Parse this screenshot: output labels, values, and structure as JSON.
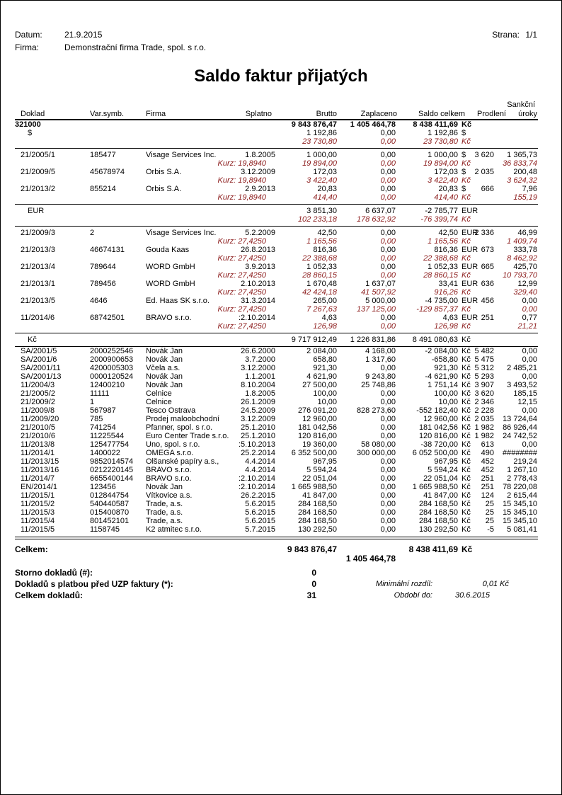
{
  "header": {
    "datum_label": "Datum:",
    "datum": "21.9.2015",
    "firma_label": "Firma:",
    "firma": "Demonstrační firma Trade, spol. s r.o.",
    "strana_label": "Strana:",
    "strana": "1/1"
  },
  "title": "Saldo faktur přijatých",
  "columns": {
    "doklad": "Doklad",
    "vs": "Var.symb.",
    "firma": "Firma",
    "splatno": "Splatno",
    "brutto": "Brutto",
    "zaplaceno": "Zaplaceno",
    "saldo": "Saldo celkem",
    "prodleni": "Prodlení",
    "sankce_1": "Sankční",
    "sankce_2": "úroky"
  },
  "account": {
    "label": "321000",
    "brutto": "9 843 876,47",
    "zaplaceno": "1 405 464,78",
    "saldo": "8 438 411,69",
    "mena": "Kč"
  },
  "groups": [
    {
      "label": "$",
      "total": {
        "brutto": "1 192,86",
        "zaplaceno": "0,00",
        "saldo": "1 192,86",
        "mena": "$"
      },
      "total_czk": {
        "brutto": "23 730,80",
        "zaplaceno": "0,00",
        "saldo": "23 730,80",
        "mena": "Kč"
      },
      "rows": [
        {
          "doklad": "21/2005/1",
          "vs": "185477",
          "firma": "Visage Services Inc.",
          "splatno": "1.8.2005",
          "brutto": "1 000,00",
          "zaplaceno": "0,00",
          "saldo": "1 000,00",
          "mena": "$",
          "prodleni": "3 620",
          "sankce": "1 365,73",
          "czk": {
            "kurz": "Kurz: 19,8940",
            "brutto": "19 894,00",
            "zaplaceno": "0,00",
            "saldo": "19 894,00",
            "mena": "Kč",
            "sankce": "36 833,74"
          }
        },
        {
          "doklad": "21/2009/5",
          "vs": "45678974",
          "firma": "Orbis S.A.",
          "splatno": "3.12.2009",
          "brutto": "172,03",
          "zaplaceno": "0,00",
          "saldo": "172,03",
          "mena": "$",
          "prodleni": "2 035",
          "sankce": "200,48",
          "czk": {
            "kurz": "Kurz: 19,8940",
            "brutto": "3 422,40",
            "zaplaceno": "0,00",
            "saldo": "3 422,40",
            "mena": "Kč",
            "sankce": "3 624,32"
          }
        },
        {
          "doklad": "21/2013/2",
          "vs": "855214",
          "firma": "Orbis S.A.",
          "splatno": "2.9.2013",
          "brutto": "20,83",
          "zaplaceno": "0,00",
          "saldo": "20,83",
          "mena": "$",
          "prodleni": "666",
          "sankce": "7,96",
          "czk": {
            "kurz": "Kurz: 19,8940",
            "brutto": "414,40",
            "zaplaceno": "0,00",
            "saldo": "414,40",
            "mena": "Kč",
            "sankce": "155,19"
          }
        }
      ]
    },
    {
      "label": "EUR",
      "total": {
        "brutto": "3 851,30",
        "zaplaceno": "6 637,07",
        "saldo": "-2 785,77",
        "mena": "EUR"
      },
      "total_czk": {
        "brutto": "102 233,18",
        "zaplaceno": "178 632,92",
        "saldo": "-76 399,74",
        "mena": "Kč"
      },
      "rows": [
        {
          "doklad": "21/2009/3",
          "vs": "2",
          "firma": "Visage Services Inc.",
          "splatno": "5.2.2009",
          "brutto": "42,50",
          "zaplaceno": "0,00",
          "saldo": "42,50",
          "mena": "EUR",
          "prodleni": "2 336",
          "sankce": "46,99",
          "czk": {
            "kurz": "Kurz: 27,4250",
            "brutto": "1 165,56",
            "zaplaceno": "0,00",
            "saldo": "1 165,56",
            "mena": "Kč",
            "sankce": "1 409,74"
          }
        },
        {
          "doklad": "21/2013/3",
          "vs": "46674131",
          "firma": "Gouda Kaas",
          "splatno": "26.8.2013",
          "brutto": "816,36",
          "zaplaceno": "0,00",
          "saldo": "816,36",
          "mena": "EUR",
          "prodleni": "673",
          "sankce": "333,78",
          "czk": {
            "kurz": "Kurz: 27,4250",
            "brutto": "22 388,68",
            "zaplaceno": "0,00",
            "saldo": "22 388,68",
            "mena": "Kč",
            "sankce": "8 462,92"
          }
        },
        {
          "doklad": "21/2013/4",
          "vs": "789644",
          "firma": "WORD GmbH",
          "splatno": "3.9.2013",
          "brutto": "1 052,33",
          "zaplaceno": "0,00",
          "saldo": "1 052,33",
          "mena": "EUR",
          "prodleni": "665",
          "sankce": "425,70",
          "czk": {
            "kurz": "Kurz: 27,4250",
            "brutto": "28 860,15",
            "zaplaceno": "0,00",
            "saldo": "28 860,15",
            "mena": "Kč",
            "sankce": "10 793,70"
          }
        },
        {
          "doklad": "21/2013/1",
          "vs": "789456",
          "firma": "WORD GmbH",
          "splatno": "2.10.2013",
          "brutto": "1 670,48",
          "zaplaceno": "1 637,07",
          "saldo": "33,41",
          "mena": "EUR",
          "prodleni": "636",
          "sankce": "12,99",
          "czk": {
            "kurz": "Kurz: 27,4250",
            "brutto": "42 424,18",
            "zaplaceno": "41 507,92",
            "saldo": "916,26",
            "mena": "Kč",
            "sankce": "329,40"
          }
        },
        {
          "doklad": "21/2013/5",
          "vs": "4646",
          "firma": "Ed. Haas SK s.r.o.",
          "splatno": "31.3.2014",
          "brutto": "265,00",
          "zaplaceno": "5 000,00",
          "saldo": "-4 735,00",
          "mena": "EUR",
          "prodleni": "456",
          "sankce": "0,00",
          "czk": {
            "kurz": "Kurz: 27,4250",
            "brutto": "7 267,63",
            "zaplaceno": "137 125,00",
            "saldo": "-129 857,37",
            "mena": "Kč",
            "sankce": "0,00"
          }
        },
        {
          "doklad": "11/2014/6",
          "vs": "68742501",
          "firma": "BRAVO s.r.o.",
          "splatno": ":2.10.2014",
          "brutto": "4,63",
          "zaplaceno": "0,00",
          "saldo": "4,63",
          "mena": "EUR",
          "prodleni": "251",
          "sankce": "0,77",
          "czk": {
            "kurz": "Kurz: 27,4250",
            "brutto": "126,98",
            "zaplaceno": "0,00",
            "saldo": "126,98",
            "mena": "Kč",
            "sankce": "21,21"
          }
        }
      ]
    },
    {
      "label": "Kč",
      "total": {
        "brutto": "9 717 912,49",
        "zaplaceno": "1 226 831,86",
        "saldo": "8 491 080,63",
        "mena": "Kč"
      },
      "rows": [
        {
          "doklad": "SA/2001/5",
          "vs": "2000252546",
          "firma": "Novák Jan",
          "splatno": "26.6.2000",
          "brutto": "2 084,00",
          "zaplaceno": "4 168,00",
          "saldo": "-2 084,00",
          "mena": "Kč",
          "prodleni": "5 482",
          "sankce": "0,00"
        },
        {
          "doklad": "SA/2001/6",
          "vs": "2000900653",
          "firma": "Novák Jan",
          "splatno": "3.7.2000",
          "brutto": "658,80",
          "zaplaceno": "1 317,60",
          "saldo": "-658,80",
          "mena": "Kč",
          "prodleni": "5 475",
          "sankce": "0,00"
        },
        {
          "doklad": "SA/2001/11",
          "vs": "4200005303",
          "firma": "Včela a.s.",
          "splatno": "3.12.2000",
          "brutto": "921,30",
          "zaplaceno": "0,00",
          "saldo": "921,30",
          "mena": "Kč",
          "prodleni": "5 312",
          "sankce": "2 485,21"
        },
        {
          "doklad": "SA/2001/13",
          "vs": "0000120524",
          "firma": "Novák Jan",
          "splatno": "1.1.2001",
          "brutto": "4 621,90",
          "zaplaceno": "9 243,80",
          "saldo": "-4 621,90",
          "mena": "Kč",
          "prodleni": "5 293",
          "sankce": "0,00"
        },
        {
          "doklad": "11/2004/3",
          "vs": "12400210",
          "firma": "Novák Jan",
          "splatno": "8.10.2004",
          "brutto": "27 500,00",
          "zaplaceno": "25 748,86",
          "saldo": "1 751,14",
          "mena": "Kč",
          "prodleni": "3 907",
          "sankce": "3 493,52"
        },
        {
          "doklad": "21/2005/2",
          "vs": "11111",
          "firma": "Celnice",
          "splatno": "1.8.2005",
          "brutto": "100,00",
          "zaplaceno": "0,00",
          "saldo": "100,00",
          "mena": "Kč",
          "prodleni": "3 620",
          "sankce": "185,15"
        },
        {
          "doklad": "21/2009/2",
          "vs": "1",
          "firma": "Celnice",
          "splatno": "26.1.2009",
          "brutto": "10,00",
          "zaplaceno": "0,00",
          "saldo": "10,00",
          "mena": "Kč",
          "prodleni": "2 346",
          "sankce": "12,15"
        },
        {
          "doklad": "11/2009/8",
          "vs": "567987",
          "firma": "Tesco Ostrava",
          "splatno": "24.5.2009",
          "brutto": "276 091,20",
          "zaplaceno": "828 273,60",
          "saldo": "-552 182,40",
          "mena": "Kč",
          "prodleni": "2 228",
          "sankce": "0,00"
        },
        {
          "doklad": "11/2009/20",
          "vs": "785",
          "firma": "Prodej maloobchodní",
          "splatno": "3.12.2009",
          "brutto": "12 960,00",
          "zaplaceno": "0,00",
          "saldo": "12 960,00",
          "mena": "Kč",
          "prodleni": "2 035",
          "sankce": "13 724,64"
        },
        {
          "doklad": "21/2010/5",
          "vs": "741254",
          "firma": "Pfanner, spol. s r.o.",
          "splatno": "25.1.2010",
          "brutto": "181 042,56",
          "zaplaceno": "0,00",
          "saldo": "181 042,56",
          "mena": "Kč",
          "prodleni": "1 982",
          "sankce": "86 926,44"
        },
        {
          "doklad": "21/2010/6",
          "vs": "11225544",
          "firma": "Euro Center Trade s.r.o.",
          "splatno": "25.1.2010",
          "brutto": "120 816,00",
          "zaplaceno": "0,00",
          "saldo": "120 816,00",
          "mena": "Kč",
          "prodleni": "1 982",
          "sankce": "24 742,52"
        },
        {
          "doklad": "11/2013/8",
          "vs": "125477754",
          "firma": "Uno, spol. s r.o.",
          "splatno": ":5.10.2013",
          "brutto": "19 360,00",
          "zaplaceno": "58 080,00",
          "saldo": "-38 720,00",
          "mena": "Kč",
          "prodleni": "613",
          "sankce": "0,00"
        },
        {
          "doklad": "11/2014/1",
          "vs": "1400022",
          "firma": "OMEGA s.r.o.",
          "splatno": "25.2.2014",
          "brutto": "6 352 500,00",
          "zaplaceno": "300 000,00",
          "saldo": "6 052 500,00",
          "mena": "Kč",
          "prodleni": "490",
          "sankce": "########"
        },
        {
          "doklad": "11/2013/15",
          "vs": "9852014574",
          "firma": "Olšanské papíry a.s.,",
          "splatno": "4.4.2014",
          "brutto": "967,95",
          "zaplaceno": "0,00",
          "saldo": "967,95",
          "mena": "Kč",
          "prodleni": "452",
          "sankce": "219,24"
        },
        {
          "doklad": "11/2013/16",
          "vs": "0212220145",
          "firma": "BRAVO s.r.o.",
          "splatno": "4.4.2014",
          "brutto": "5 594,24",
          "zaplaceno": "0,00",
          "saldo": "5 594,24",
          "mena": "Kč",
          "prodleni": "452",
          "sankce": "1 267,10"
        },
        {
          "doklad": "11/2014/7",
          "vs": "6655400144",
          "firma": "BRAVO s.r.o.",
          "splatno": ":2.10.2014",
          "brutto": "22 051,04",
          "zaplaceno": "0,00",
          "saldo": "22 051,04",
          "mena": "Kč",
          "prodleni": "251",
          "sankce": "2 778,43"
        },
        {
          "doklad": "EN/2014/1",
          "vs": "123456",
          "firma": "Novák Jan",
          "splatno": ":2.10.2014",
          "brutto": "1 665 988,50",
          "zaplaceno": "0,00",
          "saldo": "1 665 988,50",
          "mena": "Kč",
          "prodleni": "251",
          "sankce": "78 220,08"
        },
        {
          "doklad": "11/2015/1",
          "vs": "012844754",
          "firma": "Vítkovice a.s.",
          "splatno": "26.2.2015",
          "brutto": "41 847,00",
          "zaplaceno": "0,00",
          "saldo": "41 847,00",
          "mena": "Kč",
          "prodleni": "124",
          "sankce": "2 615,44"
        },
        {
          "doklad": "11/2015/2",
          "vs": "540440587",
          "firma": "Trade, a.s.",
          "splatno": "5.6.2015",
          "brutto": "284 168,50",
          "zaplaceno": "0,00",
          "saldo": "284 168,50",
          "mena": "Kč",
          "prodleni": "25",
          "sankce": "15 345,10"
        },
        {
          "doklad": "11/2015/3",
          "vs": "015400870",
          "firma": "Trade, a.s.",
          "splatno": "5.6.2015",
          "brutto": "284 168,50",
          "zaplaceno": "0,00",
          "saldo": "284 168,50",
          "mena": "Kč",
          "prodleni": "25",
          "sankce": "15 345,10"
        },
        {
          "doklad": "11/2015/4",
          "vs": "801452101",
          "firma": "Trade, a.s.",
          "splatno": "5.6.2015",
          "brutto": "284 168,50",
          "zaplaceno": "0,00",
          "saldo": "284 168,50",
          "mena": "Kč",
          "prodleni": "25",
          "sankce": "15 345,10"
        },
        {
          "doklad": "11/2015/5",
          "vs": "1158745",
          "firma": "K2 atmitec s.r.o.",
          "splatno": "5.7.2015",
          "brutto": "130 292,50",
          "zaplaceno": "0,00",
          "saldo": "130 292,50",
          "mena": "Kč",
          "prodleni": "-5",
          "sankce": "5 081,41"
        }
      ]
    }
  ],
  "totals": {
    "label": "Celkem:",
    "brutto": "9 843 876,47",
    "zaplaceno": "1 405 464,78",
    "saldo": "8 438 411,69",
    "mena": "Kč"
  },
  "summary": {
    "storno_label": "Storno dokladů (#):",
    "storno": "0",
    "uzp_label": "Dokladů s platbou před UZP faktury (*):",
    "uzp": "0",
    "count_label": "Celkem dokladů:",
    "count": "31",
    "min_label": "Minimální rozdíl:",
    "min": "0,01 Kč",
    "period_label": "Období do:",
    "period": "30.6.2015"
  }
}
